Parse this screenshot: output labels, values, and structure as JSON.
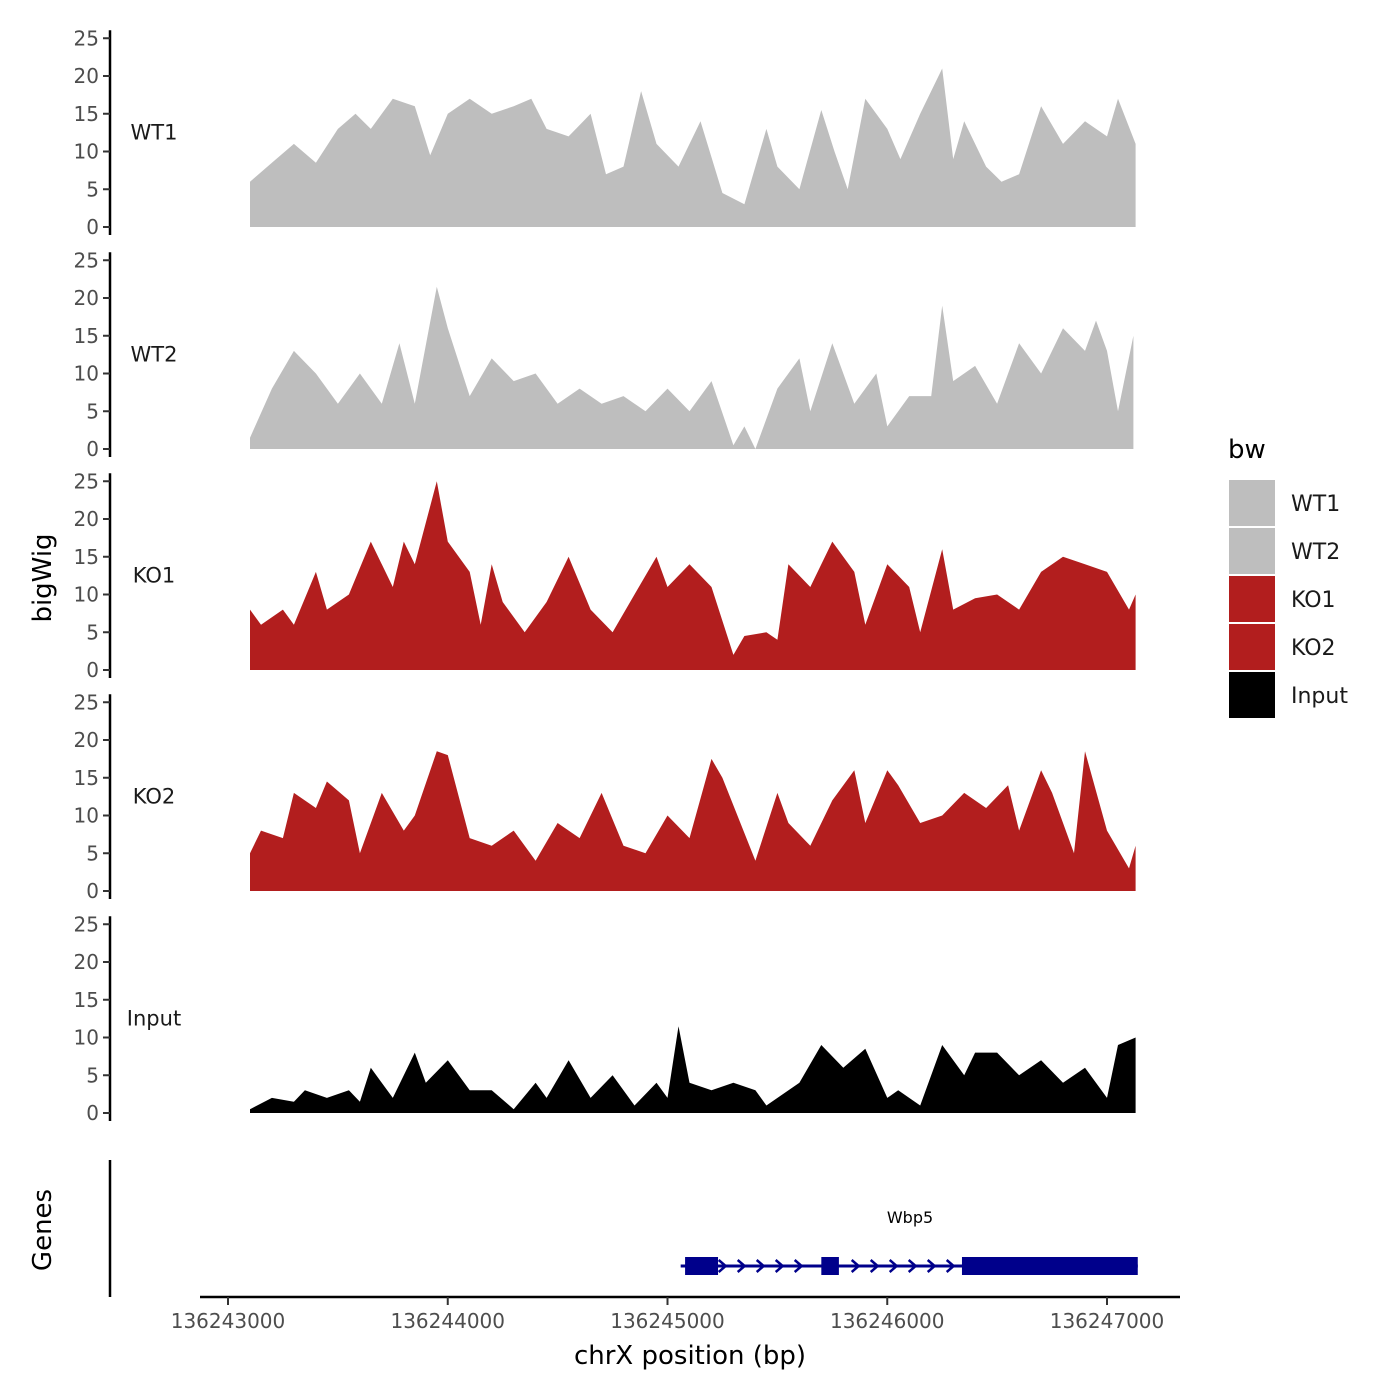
{
  "chart_data": {
    "type": "area",
    "xlabel": "chrX position (bp)",
    "ylabel": "bigWig",
    "genes_label": "Genes",
    "xlim": [
      136242900,
      136247350
    ],
    "ylim": [
      0,
      25
    ],
    "x_ticks": [
      136243000,
      136244000,
      136245000,
      136246000,
      136247000
    ],
    "y_ticks": [
      0,
      5,
      10,
      15,
      20,
      25
    ],
    "legend": {
      "title": "bw",
      "position": "right"
    },
    "series": [
      {
        "name": "WT1",
        "color": "#BEBEBE",
        "x": [
          136243100,
          136243200,
          136243300,
          136243400,
          136243500,
          136243580,
          136243650,
          136243750,
          136243850,
          136243920,
          136244000,
          136244100,
          136244200,
          136244300,
          136244380,
          136244450,
          136244550,
          136244650,
          136244720,
          136244800,
          136244880,
          136244950,
          136245050,
          136245150,
          136245250,
          136245350,
          136245450,
          136245500,
          136245600,
          136245700,
          136245760,
          136245820,
          136245900,
          136246000,
          136246060,
          136246150,
          136246250,
          136246300,
          136246350,
          136246450,
          136246520,
          136246600,
          136246700,
          136246800,
          136246900,
          136247000,
          136247050,
          136247130
        ],
        "y": [
          6,
          8.5,
          11,
          8.5,
          13,
          15,
          13,
          17,
          16,
          9.5,
          15,
          17,
          15,
          16,
          17,
          13,
          12,
          15,
          7,
          8,
          18,
          11,
          8,
          14,
          4.5,
          3,
          13,
          8,
          5,
          15.5,
          10,
          5,
          17,
          13,
          9,
          15,
          21,
          9,
          14,
          8,
          6,
          7,
          16,
          11,
          14,
          12,
          17,
          11
        ]
      },
      {
        "name": "WT2",
        "color": "#BEBEBE",
        "x": [
          136243100,
          136243200,
          136243300,
          136243400,
          136243500,
          136243600,
          136243700,
          136243780,
          136243850,
          136243950,
          136244000,
          136244100,
          136244200,
          136244300,
          136244400,
          136244500,
          136244600,
          136244700,
          136244800,
          136244900,
          136245000,
          136245100,
          136245200,
          136245300,
          136245350,
          136245400,
          136245500,
          136245600,
          136245650,
          136245750,
          136245850,
          136245950,
          136246000,
          136246100,
          136246200,
          136246250,
          136246300,
          136246400,
          136246500,
          136246600,
          136246700,
          136246800,
          136246900,
          136246950,
          136247000,
          136247050,
          136247120
        ],
        "y": [
          1.5,
          8,
          13,
          10,
          6,
          10,
          6,
          14,
          6,
          21.5,
          16,
          7,
          12,
          9,
          10,
          6,
          8,
          6,
          7,
          5,
          8,
          5,
          9,
          0.5,
          3,
          0,
          8,
          12,
          5,
          14,
          6,
          10,
          3,
          7,
          7,
          19,
          9,
          11,
          6,
          14,
          10,
          16,
          13,
          17,
          13,
          5,
          15
        ]
      },
      {
        "name": "KO1",
        "color": "#B21E1E",
        "x": [
          136243100,
          136243150,
          136243250,
          136243300,
          136243400,
          136243450,
          136243550,
          136243650,
          136243750,
          136243800,
          136243850,
          136243950,
          136244000,
          136244100,
          136244150,
          136244200,
          136244250,
          136244350,
          136244450,
          136244550,
          136244650,
          136244750,
          136244850,
          136244950,
          136245000,
          136245100,
          136245200,
          136245300,
          136245350,
          136245450,
          136245500,
          136245550,
          136245650,
          136245750,
          136245850,
          136245900,
          136246000,
          136246100,
          136246150,
          136246250,
          136246300,
          136246400,
          136246500,
          136246600,
          136246700,
          136246800,
          136246900,
          136247000,
          136247100,
          136247130
        ],
        "y": [
          8,
          6,
          8,
          6,
          13,
          8,
          10,
          17,
          11,
          17,
          14,
          25,
          17,
          13,
          6,
          14,
          9,
          5,
          9,
          15,
          8,
          5,
          10,
          15,
          11,
          14,
          11,
          2,
          4.5,
          5,
          4,
          14,
          11,
          17,
          13,
          6,
          14,
          11,
          5,
          16,
          8,
          9.5,
          10,
          8,
          13,
          15,
          14,
          13,
          8,
          10
        ]
      },
      {
        "name": "KO2",
        "color": "#B21E1E",
        "x": [
          136243100,
          136243150,
          136243250,
          136243300,
          136243400,
          136243450,
          136243550,
          136243600,
          136243700,
          136243800,
          136243850,
          136243950,
          136244000,
          136244100,
          136244200,
          136244300,
          136244400,
          136244500,
          136244600,
          136244700,
          136244800,
          136244900,
          136245000,
          136245100,
          136245200,
          136245250,
          136245400,
          136245500,
          136245550,
          136245650,
          136245750,
          136245850,
          136245900,
          136246000,
          136246050,
          136246150,
          136246250,
          136246350,
          136246450,
          136246550,
          136246600,
          136246700,
          136246750,
          136246850,
          136246900,
          136247000,
          136247100,
          136247130
        ],
        "y": [
          5,
          8,
          7,
          13,
          11,
          14.5,
          12,
          5,
          13,
          8,
          10,
          18.5,
          18,
          7,
          6,
          8,
          4,
          9,
          7,
          13,
          6,
          5,
          10,
          7,
          17.5,
          15,
          4,
          13,
          9,
          6,
          12,
          16,
          9,
          16,
          14,
          9,
          10,
          13,
          11,
          14,
          8,
          16,
          13,
          5,
          18.5,
          8,
          3,
          6
        ]
      },
      {
        "name": "Input",
        "color": "#000000",
        "x": [
          136243100,
          136243200,
          136243300,
          136243350,
          136243450,
          136243550,
          136243600,
          136243650,
          136243750,
          136243850,
          136243900,
          136244000,
          136244100,
          136244200,
          136244300,
          136244400,
          136244450,
          136244550,
          136244650,
          136244750,
          136244850,
          136244950,
          136245000,
          136245050,
          136245100,
          136245200,
          136245300,
          136245400,
          136245450,
          136245600,
          136245700,
          136245800,
          136245900,
          136246000,
          136246050,
          136246150,
          136246250,
          136246350,
          136246400,
          136246500,
          136246600,
          136246700,
          136246800,
          136246900,
          136247000,
          136247050,
          136247130
        ],
        "y": [
          0.5,
          2,
          1.5,
          3,
          2,
          3,
          1.5,
          6,
          2,
          8,
          4,
          7,
          3,
          3,
          0.5,
          4,
          2,
          7,
          2,
          5,
          1,
          4,
          2,
          11.5,
          4,
          3,
          4,
          3,
          1,
          4,
          9,
          6,
          8.5,
          2,
          3,
          1,
          9,
          5,
          8,
          8,
          5,
          7,
          4,
          6,
          2,
          9,
          10
        ]
      },
      {
        "name": "Genes",
        "color": "#00008B",
        "gene": "Wbp5",
        "strand": "+",
        "exons": [
          [
            136245080,
            136245230
          ],
          [
            136245700,
            136245780
          ],
          [
            136246340,
            136247140
          ]
        ],
        "transcript": [
          136245060,
          136247140
        ]
      }
    ]
  }
}
